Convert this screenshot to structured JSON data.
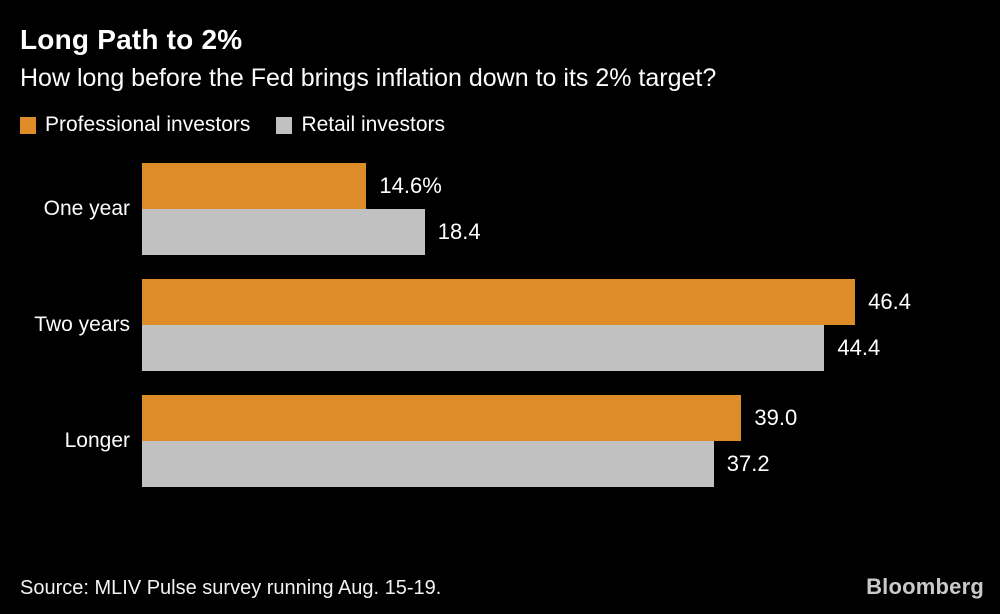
{
  "header": {
    "title": "Long Path to 2%",
    "subtitle": "How long before the Fed brings inflation down to its 2% target?"
  },
  "chart_data": {
    "type": "bar",
    "orientation": "horizontal",
    "title": "Long Path to 2%",
    "subtitle": "How long before the Fed brings inflation down to its 2% target?",
    "categories": [
      "One year",
      "Two years",
      "Longer"
    ],
    "series": [
      {
        "name": "Professional investors",
        "color": "#DE8C28",
        "values": [
          14.6,
          46.4,
          39.0
        ],
        "labels": [
          "14.6%",
          "46.4",
          "39.0"
        ]
      },
      {
        "name": "Retail investors",
        "color": "#C1C1C1",
        "values": [
          18.4,
          44.4,
          37.2
        ],
        "labels": [
          "18.4",
          "44.4",
          "37.2"
        ]
      }
    ],
    "value_unit": "%",
    "xlim": [
      0,
      55
    ],
    "grid": false,
    "legend_position": "top",
    "background_color": "#000000",
    "text_color": "#ffffff"
  },
  "footer": {
    "source": "Source: MLIV Pulse survey running Aug. 15-19.",
    "logo": "Bloomberg"
  }
}
